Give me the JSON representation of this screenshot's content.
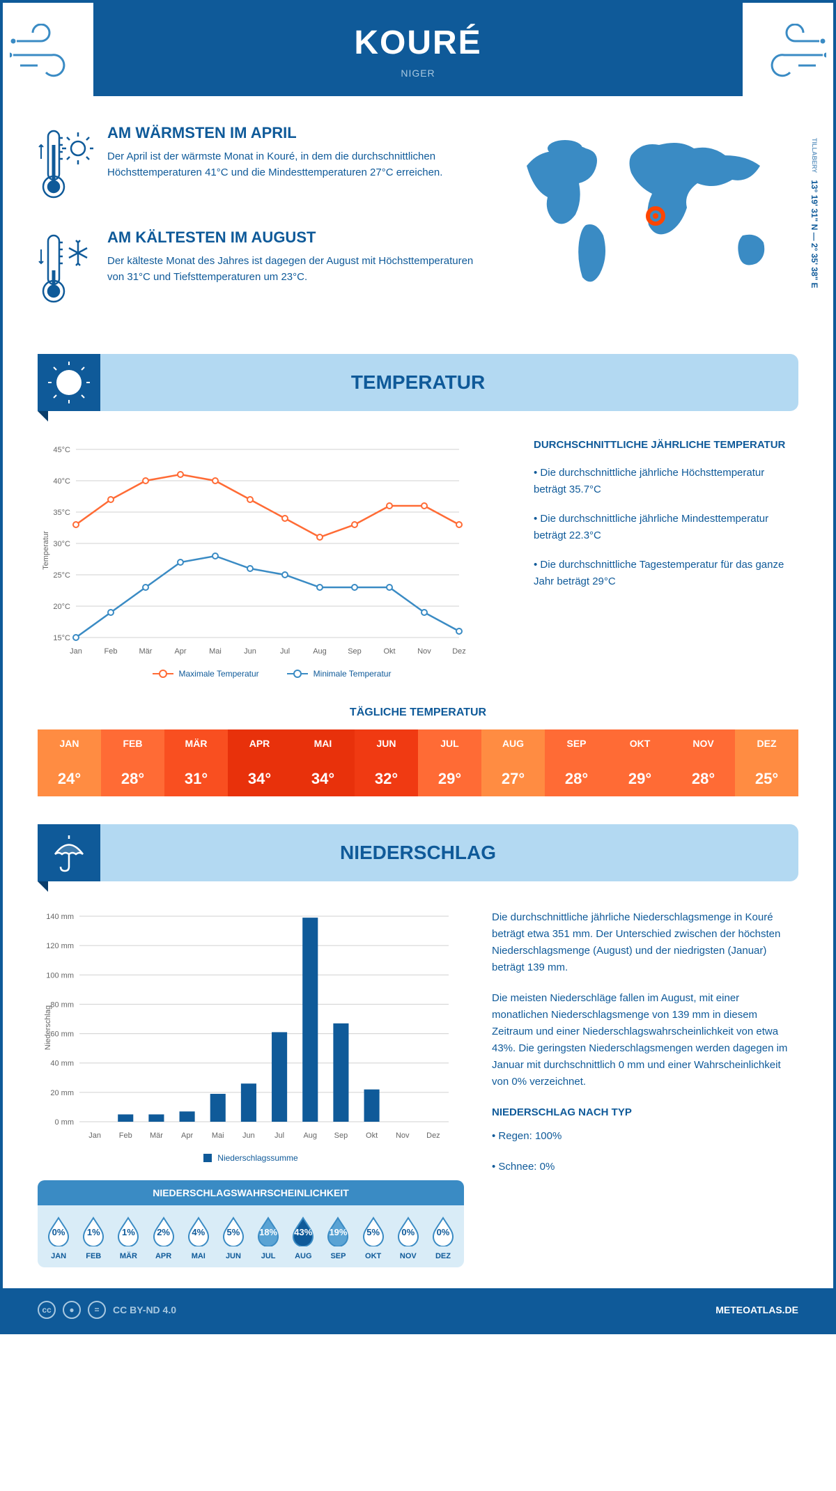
{
  "header": {
    "title": "KOURÉ",
    "country": "NIGER"
  },
  "coords": {
    "lat": "13° 19' 31\" N",
    "lon": "2° 35' 38\" E",
    "region": "TILLABERY"
  },
  "warmest": {
    "title": "AM WÄRMSTEN IM APRIL",
    "text": "Der April ist der wärmste Monat in Kouré, in dem die durchschnittlichen Höchsttemperaturen 41°C und die Mindesttemperaturen 27°C erreichen."
  },
  "coldest": {
    "title": "AM KÄLTESTEN IM AUGUST",
    "text": "Der kälteste Monat des Jahres ist dagegen der August mit Höchsttemperaturen von 31°C und Tiefsttemperaturen um 23°C."
  },
  "temp_section": {
    "title": "TEMPERATUR"
  },
  "temp_chart": {
    "type": "line",
    "months": [
      "Jan",
      "Feb",
      "Mär",
      "Apr",
      "Mai",
      "Jun",
      "Jul",
      "Aug",
      "Sep",
      "Okt",
      "Nov",
      "Dez"
    ],
    "max_series": [
      33,
      37,
      40,
      41,
      40,
      37,
      34,
      31,
      33,
      36,
      36,
      33
    ],
    "min_series": [
      15,
      19,
      23,
      27,
      28,
      26,
      25,
      23,
      23,
      23,
      19,
      16
    ],
    "max_color": "#ff6b35",
    "min_color": "#3a8bc4",
    "ylim": [
      15,
      45
    ],
    "ytick_step": 5,
    "grid_color": "#d0d0d0",
    "ylabel": "Temperatur",
    "legend_max": "Maximale Temperatur",
    "legend_min": "Minimale Temperatur"
  },
  "temp_info": {
    "title": "DURCHSCHNITTLICHE JÄHRLICHE TEMPERATUR",
    "b1": "• Die durchschnittliche jährliche Höchsttemperatur beträgt 35.7°C",
    "b2": "• Die durchschnittliche jährliche Mindesttemperatur beträgt 22.3°C",
    "b3": "• Die durchschnittliche Tagestemperatur für das ganze Jahr beträgt 29°C"
  },
  "daily_temp": {
    "title": "TÄGLICHE TEMPERATUR",
    "months": [
      "JAN",
      "FEB",
      "MÄR",
      "APR",
      "MAI",
      "JUN",
      "JUL",
      "AUG",
      "SEP",
      "OKT",
      "NOV",
      "DEZ"
    ],
    "values": [
      "24°",
      "28°",
      "31°",
      "34°",
      "34°",
      "32°",
      "29°",
      "27°",
      "28°",
      "29°",
      "28°",
      "25°"
    ],
    "colors": [
      "#ff8c42",
      "#ff6b35",
      "#f94f20",
      "#e8310b",
      "#e8310b",
      "#f03a12",
      "#ff6b35",
      "#ff8c42",
      "#ff6b35",
      "#ff6b35",
      "#ff6b35",
      "#ff8c42"
    ]
  },
  "precip_section": {
    "title": "NIEDERSCHLAG"
  },
  "precip_chart": {
    "type": "bar",
    "months": [
      "Jan",
      "Feb",
      "Mär",
      "Apr",
      "Mai",
      "Jun",
      "Jul",
      "Aug",
      "Sep",
      "Okt",
      "Nov",
      "Dez"
    ],
    "values": [
      0,
      5,
      5,
      7,
      19,
      26,
      61,
      139,
      67,
      22,
      0,
      0
    ],
    "bar_color": "#0f5a99",
    "ylim": [
      0,
      140
    ],
    "ytick_step": 20,
    "grid_color": "#d0d0d0",
    "ylabel": "Niederschlag",
    "legend": "Niederschlagssumme"
  },
  "precip_info": {
    "p1": "Die durchschnittliche jährliche Niederschlagsmenge in Kouré beträgt etwa 351 mm. Der Unterschied zwischen der höchsten Niederschlagsmenge (August) und der niedrigsten (Januar) beträgt 139 mm.",
    "p2": "Die meisten Niederschläge fallen im August, mit einer monatlichen Niederschlagsmenge von 139 mm in diesem Zeitraum und einer Niederschlagswahrscheinlichkeit von etwa 43%. Die geringsten Niederschlagsmengen werden dagegen im Januar mit durchschnittlich 0 mm und einer Wahrscheinlichkeit von 0% verzeichnet.",
    "type_title": "NIEDERSCHLAG NACH TYP",
    "type_rain": "• Regen: 100%",
    "type_snow": "• Schnee: 0%"
  },
  "prob": {
    "title": "NIEDERSCHLAGSWAHRSCHEINLICHKEIT",
    "months": [
      "JAN",
      "FEB",
      "MÄR",
      "APR",
      "MAI",
      "JUN",
      "JUL",
      "AUG",
      "SEP",
      "OKT",
      "NOV",
      "DEZ"
    ],
    "values": [
      "0%",
      "1%",
      "1%",
      "2%",
      "4%",
      "5%",
      "18%",
      "43%",
      "19%",
      "5%",
      "0%",
      "0%"
    ],
    "fills": [
      0,
      0,
      0,
      0,
      0,
      0,
      0.42,
      1,
      0.44,
      0,
      0,
      0
    ],
    "drop_outline": "#3a8bc4",
    "drop_fill": "#0f5a99",
    "drop_empty": "#ffffff"
  },
  "footer": {
    "license": "CC BY-ND 4.0",
    "site": "METEOATLAS.DE"
  }
}
